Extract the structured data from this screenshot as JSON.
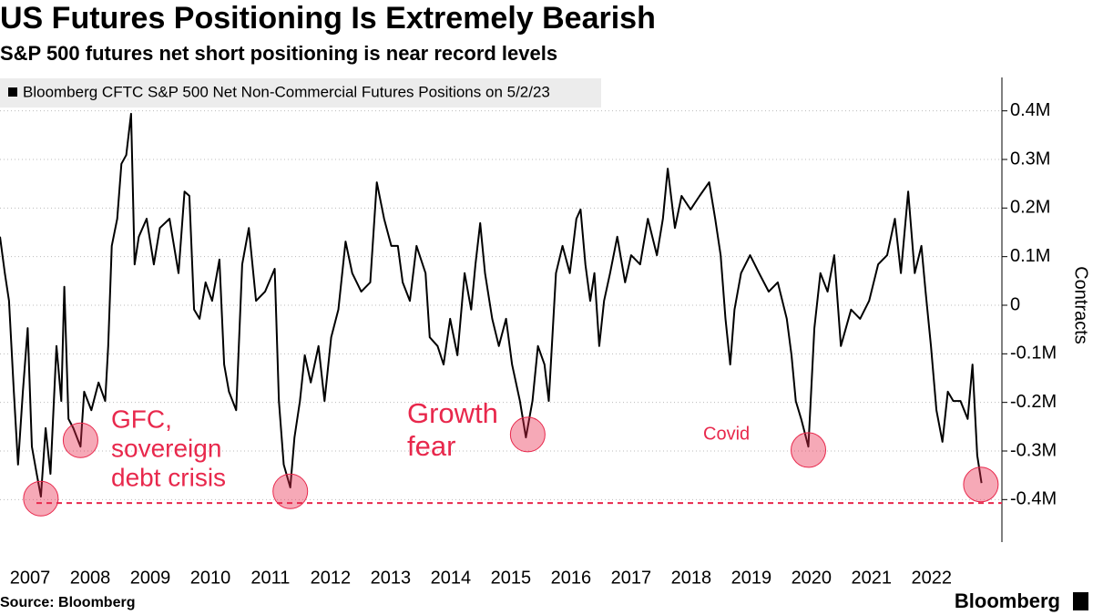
{
  "chart_data": {
    "type": "line",
    "title": "US Futures Positioning Is Extremely Bearish",
    "subtitle": "S&P 500 futures net short positioning is near record levels",
    "source": "Source: Bloomberg",
    "brand": "Bloomberg",
    "y_axis_label": "Contracts",
    "xlim": [
      2007,
      2023.67
    ],
    "ylim": [
      -487500,
      468750
    ],
    "grid": true,
    "xticks": [
      {
        "value": 2007.5,
        "label": "2007"
      },
      {
        "value": 2008.5,
        "label": "2008"
      },
      {
        "value": 2009.5,
        "label": "2009"
      },
      {
        "value": 2010.5,
        "label": "2010"
      },
      {
        "value": 2011.5,
        "label": "2011"
      },
      {
        "value": 2012.5,
        "label": "2012"
      },
      {
        "value": 2013.5,
        "label": "2013"
      },
      {
        "value": 2014.5,
        "label": "2014"
      },
      {
        "value": 2015.5,
        "label": "2015"
      },
      {
        "value": 2016.5,
        "label": "2016"
      },
      {
        "value": 2017.5,
        "label": "2017"
      },
      {
        "value": 2018.5,
        "label": "2018"
      },
      {
        "value": 2019.5,
        "label": "2019"
      },
      {
        "value": 2020.5,
        "label": "2020"
      },
      {
        "value": 2021.5,
        "label": "2021"
      },
      {
        "value": 2022.5,
        "label": "2022"
      }
    ],
    "yticks": [
      {
        "value": 400000,
        "label": "0.4M"
      },
      {
        "value": 300000,
        "label": "0.3M"
      },
      {
        "value": 200000,
        "label": "0.2M"
      },
      {
        "value": 100000,
        "label": "0.1M"
      },
      0,
      {
        "value": -100000,
        "label": "-0.1M"
      },
      {
        "value": -200000,
        "label": "-0.2M"
      },
      {
        "value": -300000,
        "label": "-0.3M"
      },
      {
        "value": -400000,
        "label": "-0.4M"
      }
    ],
    "x": [
      2007.0,
      2007.08,
      2007.15,
      2007.23,
      2007.3,
      2007.38,
      2007.46,
      2007.53,
      2007.61,
      2007.68,
      2007.76,
      2007.84,
      2007.94,
      2008.02,
      2008.07,
      2008.14,
      2008.22,
      2008.34,
      2008.4,
      2008.52,
      2008.64,
      2008.75,
      2008.8,
      2008.86,
      2008.95,
      2009.02,
      2009.1,
      2009.18,
      2009.24,
      2009.31,
      2009.44,
      2009.56,
      2009.66,
      2009.82,
      2009.97,
      2010.07,
      2010.15,
      2010.23,
      2010.32,
      2010.42,
      2010.53,
      2010.65,
      2010.73,
      2010.81,
      2010.93,
      2011.03,
      2011.14,
      2011.26,
      2011.41,
      2011.57,
      2011.64,
      2011.72,
      2011.83,
      2011.9,
      2011.99,
      2012.07,
      2012.17,
      2012.3,
      2012.4,
      2012.51,
      2012.63,
      2012.75,
      2012.86,
      2013.01,
      2013.16,
      2013.27,
      2013.39,
      2013.51,
      2013.62,
      2013.7,
      2013.82,
      2013.93,
      2014.08,
      2014.15,
      2014.28,
      2014.38,
      2014.49,
      2014.61,
      2014.73,
      2014.84,
      2014.91,
      2014.99,
      2015.07,
      2015.19,
      2015.3,
      2015.42,
      2015.52,
      2015.65,
      2015.75,
      2015.86,
      2015.95,
      2016.06,
      2016.13,
      2016.25,
      2016.36,
      2016.48,
      2016.59,
      2016.66,
      2016.74,
      2016.82,
      2016.89,
      2016.97,
      2017.05,
      2017.15,
      2017.27,
      2017.4,
      2017.5,
      2017.65,
      2017.78,
      2017.93,
      2018.03,
      2018.11,
      2018.23,
      2018.34,
      2018.49,
      2018.64,
      2018.8,
      2018.9,
      2018.99,
      2019.07,
      2019.15,
      2019.22,
      2019.33,
      2019.48,
      2019.63,
      2019.79,
      2019.94,
      2020.09,
      2020.17,
      2020.24,
      2020.33,
      2020.45,
      2020.55,
      2020.65,
      2020.77,
      2020.88,
      2020.99,
      2021.16,
      2021.31,
      2021.46,
      2021.61,
      2021.76,
      2021.89,
      2021.99,
      2022.11,
      2022.22,
      2022.33,
      2022.4,
      2022.49,
      2022.58,
      2022.68,
      2022.77,
      2022.86,
      2022.98,
      2023.1,
      2023.18,
      2023.26,
      2023.33
    ],
    "series": [
      {
        "name": "Bloomberg CFTC S&P 500 Net Non-Commercial Futures Positions on 5/2/23",
        "color": "#000000",
        "values": [
          141000,
          66000,
          9000,
          -178000,
          -328000,
          -178000,
          -47000,
          -291000,
          -347000,
          -394000,
          -253000,
          -347000,
          -84000,
          -197000,
          38000,
          -234000,
          -253000,
          -291000,
          -178000,
          -216000,
          -159000,
          -197000,
          -84000,
          122000,
          178000,
          291000,
          309000,
          394000,
          84000,
          141000,
          178000,
          84000,
          159000,
          178000,
          66000,
          234000,
          225000,
          -9000,
          -28000,
          47000,
          9000,
          94000,
          -122000,
          -178000,
          -216000,
          84000,
          159000,
          9000,
          28000,
          75000,
          -197000,
          -328000,
          -375000,
          -272000,
          -197000,
          -103000,
          -159000,
          -84000,
          -197000,
          -66000,
          -9000,
          131000,
          66000,
          28000,
          47000,
          253000,
          178000,
          122000,
          122000,
          47000,
          9000,
          122000,
          66000,
          -66000,
          -84000,
          -122000,
          -28000,
          -103000,
          66000,
          -9000,
          84000,
          169000,
          66000,
          -28000,
          -84000,
          -28000,
          -122000,
          -197000,
          -272000,
          -197000,
          -84000,
          -122000,
          -197000,
          66000,
          122000,
          66000,
          178000,
          197000,
          84000,
          9000,
          66000,
          -84000,
          9000,
          66000,
          141000,
          47000,
          103000,
          84000,
          178000,
          103000,
          178000,
          281000,
          159000,
          225000,
          197000,
          225000,
          253000,
          178000,
          103000,
          -28000,
          -122000,
          -9000,
          66000,
          103000,
          66000,
          28000,
          47000,
          -28000,
          -103000,
          -197000,
          -234000,
          -291000,
          -47000,
          66000,
          28000,
          103000,
          -84000,
          -9000,
          -28000,
          9000,
          84000,
          103000,
          178000,
          66000,
          234000,
          66000,
          122000,
          28000,
          -84000,
          -216000,
          -281000,
          -178000,
          -197000,
          -197000,
          -234000,
          -122000,
          -309000,
          -366000
        ]
      }
    ],
    "reference_line": -407000,
    "highlights": [
      {
        "x": 2007.68,
        "y": -398000
      },
      {
        "x": 2008.34,
        "y": -278000
      },
      {
        "x": 2011.83,
        "y": -383000
      },
      {
        "x": 2015.78,
        "y": -266000
      },
      {
        "x": 2020.45,
        "y": -298000
      },
      {
        "x": 2023.32,
        "y": -369000
      }
    ],
    "annotations": [
      {
        "lines": [
          "GFC,",
          "sovereign",
          "debt crisis"
        ]
      },
      {
        "lines": [
          "Growth",
          "fear"
        ]
      },
      {
        "lines": [
          "Covid"
        ]
      }
    ]
  }
}
